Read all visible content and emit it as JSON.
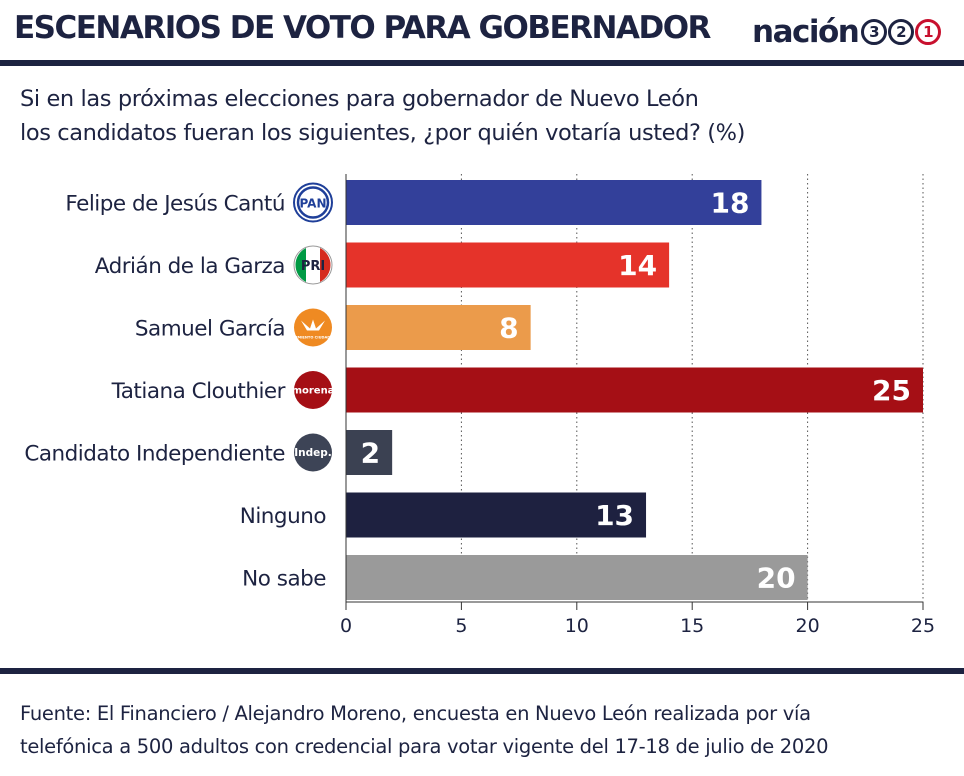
{
  "header": {
    "title": "ESCENARIOS DE VOTO PARA GOBERNADOR",
    "brand": {
      "word": "nación",
      "digits": [
        "3",
        "2",
        "1"
      ]
    }
  },
  "subtitle": {
    "line1": "Si en las próximas elecciones para gobernador de Nuevo León",
    "line2": "los candidatos fueran los siguientes, ¿por quién votaría usted? (%)"
  },
  "chart_data": {
    "type": "bar",
    "orientation": "horizontal",
    "title": "",
    "xlabel": "",
    "ylabel": "",
    "xlim": [
      0,
      25
    ],
    "xticks": [
      0,
      5,
      10,
      15,
      20,
      25
    ],
    "grid": true,
    "categories": [
      "Felipe de Jesús Cantú",
      "Adrián de la Garza",
      "Samuel García",
      "Tatiana Clouthier",
      "Candidato Independiente",
      "Ninguno",
      "No sabe"
    ],
    "values": [
      18,
      14,
      8,
      25,
      2,
      13,
      20
    ],
    "colors": [
      "#33409a",
      "#e5332a",
      "#eb9b4b",
      "#a50f15",
      "#3b4152",
      "#1e2140",
      "#9a9a9a"
    ],
    "badges": [
      {
        "icon": "pan-logo-icon",
        "label": "PAN",
        "color": "#1f3f99"
      },
      {
        "icon": "pri-logo-icon",
        "label": "PRI",
        "color": "#009a44"
      },
      {
        "icon": "movimiento-ciudadano-logo-icon",
        "label": "MOVIMIENTO CIUDADANO",
        "color": "#ef8a22"
      },
      {
        "icon": "morena-logo-icon",
        "label": "morena",
        "color": "#a50f15"
      },
      {
        "icon": "independiente-logo-icon",
        "label": "Indep.",
        "color": "#3d4456"
      },
      null,
      null
    ]
  },
  "source": {
    "line1": "Fuente: El Financiero / Alejandro Moreno, encuesta en Nuevo León realizada por vía",
    "line2": "telefónica a 500 adultos con credencial para votar vigente del 17-18 de julio de 2020"
  }
}
